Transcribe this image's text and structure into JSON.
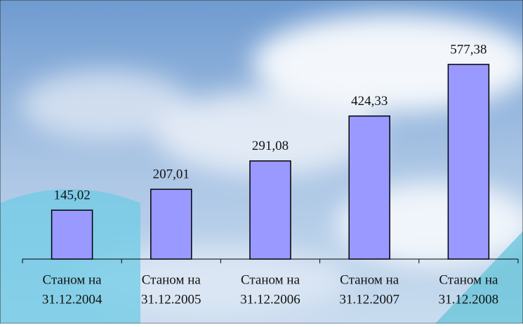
{
  "chart_data": {
    "type": "bar",
    "categories": [
      [
        "Станом на",
        "31.12.2004"
      ],
      [
        "Станом на",
        "31.12.2005"
      ],
      [
        "Станом на",
        "31.12.2006"
      ],
      [
        "Станом на",
        "31.12.2007"
      ],
      [
        "Станом на",
        "31.12.2008"
      ]
    ],
    "values": [
      145.02,
      207.01,
      291.08,
      424.33,
      577.38
    ],
    "value_labels": [
      "145,02",
      "207,01",
      "291,08",
      "424,33",
      "577,38"
    ],
    "color": "#9999ff"
  }
}
